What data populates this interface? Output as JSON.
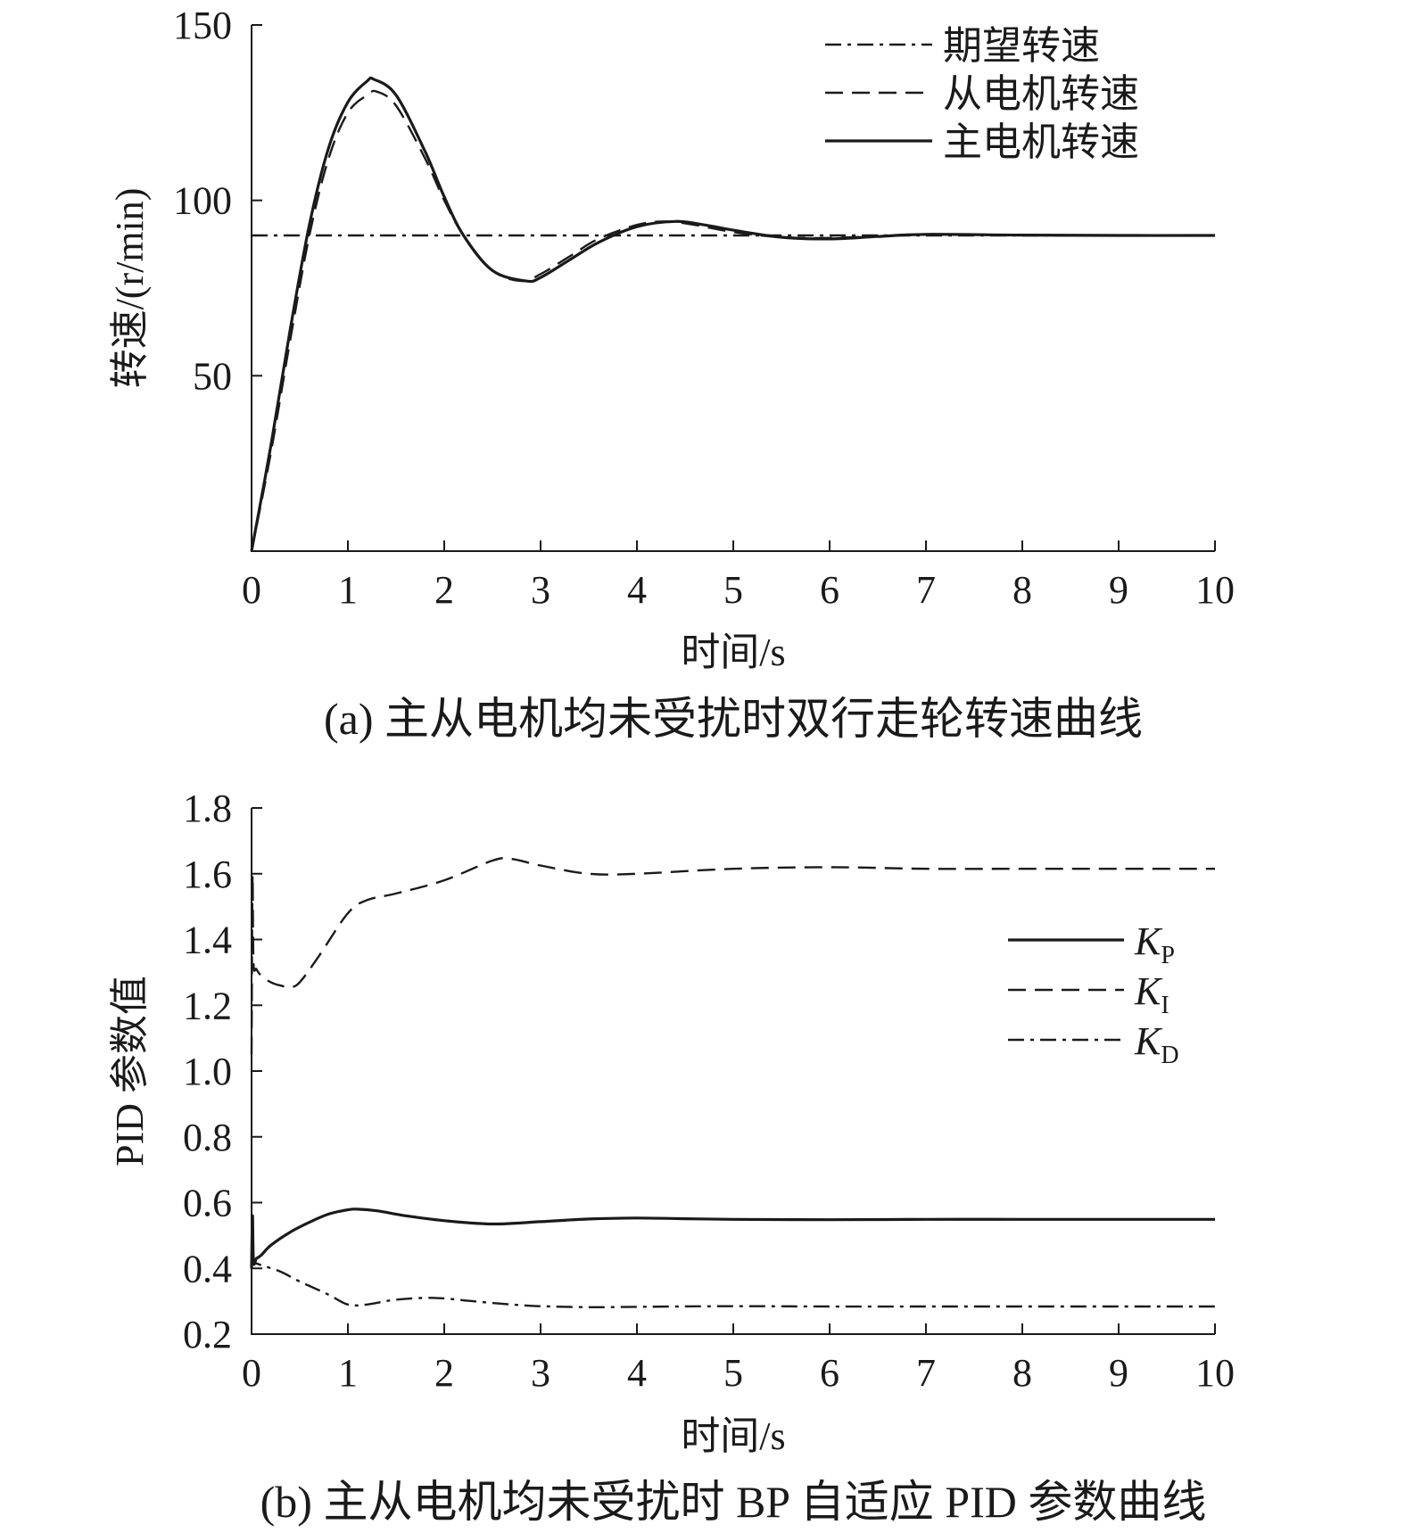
{
  "chart_data": [
    {
      "id": "a",
      "type": "line",
      "caption": "(a) 主从电机均未受扰时双行走轮转速曲线",
      "xlabel": "时间/s",
      "ylabel": "转速/(r/min)",
      "xlim": [
        0,
        10
      ],
      "ylim": [
        0,
        150
      ],
      "xticks": [
        0,
        1,
        2,
        3,
        4,
        5,
        6,
        7,
        8,
        9,
        10
      ],
      "yticks": [
        50,
        100,
        150
      ],
      "grid": false,
      "legend_position": "top-right",
      "series": [
        {
          "name": "期望转速",
          "style": "dashdot",
          "x": [
            0,
            10
          ],
          "y": [
            90,
            90
          ]
        },
        {
          "name": "从电机转速",
          "style": "dashed",
          "x": [
            0,
            0.2,
            0.4,
            0.6,
            0.8,
            1.0,
            1.2,
            1.3,
            1.5,
            1.8,
            2.0,
            2.2,
            2.5,
            2.8,
            3.0,
            3.3,
            3.6,
            4.0,
            4.3,
            4.6,
            5.0,
            5.5,
            6.0,
            6.5,
            7.0,
            8.0,
            9.0,
            10.0
          ],
          "y": [
            0,
            28,
            60,
            90,
            112,
            125,
            130,
            131,
            127,
            112,
            100,
            90,
            80,
            77,
            79,
            84,
            89,
            93,
            94,
            93,
            91,
            89.5,
            89.3,
            89.8,
            90.2,
            90.1,
            90,
            90
          ]
        },
        {
          "name": "主电机转速",
          "style": "solid",
          "x": [
            0,
            0.2,
            0.4,
            0.6,
            0.8,
            1.0,
            1.2,
            1.27,
            1.5,
            1.8,
            2.0,
            2.2,
            2.5,
            2.85,
            3.0,
            3.3,
            3.6,
            4.0,
            4.4,
            4.7,
            5.0,
            5.5,
            6.0,
            6.5,
            7.0,
            8.0,
            9.0,
            10.0
          ],
          "y": [
            0,
            30,
            63,
            93,
            115,
            128,
            134,
            134.5,
            130,
            114,
            101,
            90,
            80,
            77,
            78,
            83,
            88,
            92.5,
            94,
            93,
            91.5,
            89.5,
            89,
            89.7,
            90.3,
            90.1,
            90,
            90
          ]
        }
      ]
    },
    {
      "id": "b",
      "type": "line",
      "caption": "(b) 主从电机均未受扰时 BP 自适应 PID 参数曲线",
      "xlabel": "时间/s",
      "ylabel": "PID 参数值",
      "xlim": [
        0,
        10
      ],
      "ylim": [
        0.2,
        1.8
      ],
      "xticks": [
        0,
        1,
        2,
        3,
        4,
        5,
        6,
        7,
        8,
        9,
        10
      ],
      "yticks": [
        0.2,
        0.4,
        0.6,
        0.8,
        1.0,
        1.2,
        1.4,
        1.6,
        1.8
      ],
      "ytick_labels": [
        "0.2",
        "0.4",
        "0.6",
        "0.8",
        "1.0",
        "1.2",
        "1.4",
        "1.6",
        "1.8"
      ],
      "grid": false,
      "legend_position": "upper-right",
      "series": [
        {
          "name": "K",
          "sub": "P",
          "style": "solid",
          "x": [
            0,
            0.01,
            0.02,
            0.05,
            0.1,
            0.2,
            0.4,
            0.6,
            0.8,
            1.0,
            1.1,
            1.3,
            1.6,
            2.0,
            2.5,
            3.0,
            3.5,
            4.0,
            4.5,
            5.0,
            6.0,
            7.0,
            8.0,
            9.0,
            10.0
          ],
          "y": [
            0.4,
            0.56,
            0.42,
            0.43,
            0.44,
            0.47,
            0.51,
            0.54,
            0.565,
            0.578,
            0.58,
            0.575,
            0.56,
            0.545,
            0.535,
            0.542,
            0.55,
            0.553,
            0.551,
            0.549,
            0.548,
            0.549,
            0.549,
            0.549,
            0.549
          ]
        },
        {
          "name": "K",
          "sub": "I",
          "style": "dashed",
          "x": [
            0,
            0.01,
            0.02,
            0.05,
            0.1,
            0.2,
            0.3,
            0.4,
            0.5,
            0.7,
            1.0,
            1.2,
            1.5,
            2.0,
            2.5,
            2.7,
            3.0,
            3.5,
            4.0,
            5.0,
            6.0,
            7.0,
            8.0,
            9.0,
            10.0
          ],
          "y": [
            1.05,
            1.59,
            1.33,
            1.31,
            1.29,
            1.27,
            1.26,
            1.255,
            1.27,
            1.35,
            1.48,
            1.52,
            1.54,
            1.58,
            1.64,
            1.645,
            1.625,
            1.6,
            1.6,
            1.615,
            1.62,
            1.615,
            1.615,
            1.615,
            1.615
          ]
        },
        {
          "name": "K",
          "sub": "D",
          "style": "dashdot",
          "x": [
            0,
            0.01,
            0.05,
            0.1,
            0.3,
            0.5,
            0.8,
            1.0,
            1.2,
            1.5,
            1.9,
            2.3,
            2.7,
            3.0,
            3.5,
            4.0,
            5.0,
            6.0,
            7.0,
            8.0,
            9.0,
            10.0
          ],
          "y": [
            0.4,
            0.42,
            0.415,
            0.41,
            0.39,
            0.36,
            0.32,
            0.29,
            0.29,
            0.305,
            0.31,
            0.3,
            0.29,
            0.285,
            0.282,
            0.283,
            0.285,
            0.284,
            0.284,
            0.284,
            0.284,
            0.284
          ]
        }
      ]
    }
  ]
}
